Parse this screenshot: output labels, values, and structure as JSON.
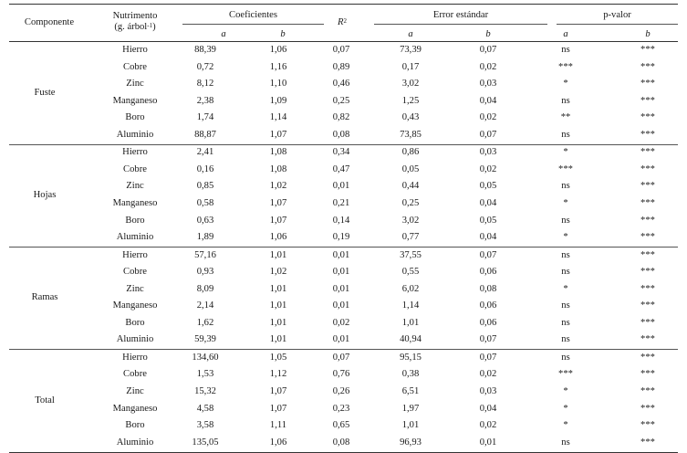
{
  "headers": {
    "componente": "Componente",
    "nutrimento_line1": "Nutrimento",
    "nutrimento_line2": "(g. árbol",
    "nutrimento_sup": "-1",
    "nutrimento_close": ")",
    "coeficientes": "Coeficientes",
    "r2_base": "R",
    "r2_sup": "2",
    "error": "Error estándar",
    "pvalor": "p-valor",
    "sub_a": "a",
    "sub_b": "b"
  },
  "groups": [
    {
      "name": "Fuste",
      "rows": [
        {
          "nutrient": "Hierro",
          "coef_a": "88,39",
          "coef_b": "1,06",
          "r2": "0,07",
          "err_a": "73,39",
          "err_b": "0,07",
          "p_a": "ns",
          "p_b": "***"
        },
        {
          "nutrient": "Cobre",
          "coef_a": "0,72",
          "coef_b": "1,16",
          "r2": "0,89",
          "err_a": "0,17",
          "err_b": "0,02",
          "p_a": "***",
          "p_b": "***"
        },
        {
          "nutrient": "Zinc",
          "coef_a": "8,12",
          "coef_b": "1,10",
          "r2": "0,46",
          "err_a": "3,02",
          "err_b": "0,03",
          "p_a": "*",
          "p_b": "***"
        },
        {
          "nutrient": "Manganeso",
          "coef_a": "2,38",
          "coef_b": "1,09",
          "r2": "0,25",
          "err_a": "1,25",
          "err_b": "0,04",
          "p_a": "ns",
          "p_b": "***"
        },
        {
          "nutrient": "Boro",
          "coef_a": "1,74",
          "coef_b": "1,14",
          "r2": "0,82",
          "err_a": "0,43",
          "err_b": "0,02",
          "p_a": "**",
          "p_b": "***"
        },
        {
          "nutrient": "Aluminio",
          "coef_a": "88,87",
          "coef_b": "1,07",
          "r2": "0,08",
          "err_a": "73,85",
          "err_b": "0,07",
          "p_a": "ns",
          "p_b": "***"
        }
      ]
    },
    {
      "name": "Hojas",
      "rows": [
        {
          "nutrient": "Hierro",
          "coef_a": "2,41",
          "coef_b": "1,08",
          "r2": "0,34",
          "err_a": "0,86",
          "err_b": "0,03",
          "p_a": "*",
          "p_b": "***"
        },
        {
          "nutrient": "Cobre",
          "coef_a": "0,16",
          "coef_b": "1,08",
          "r2": "0,47",
          "err_a": "0,05",
          "err_b": "0,02",
          "p_a": "***",
          "p_b": "***"
        },
        {
          "nutrient": "Zinc",
          "coef_a": "0,85",
          "coef_b": "1,02",
          "r2": "0,01",
          "err_a": "0,44",
          "err_b": "0,05",
          "p_a": "ns",
          "p_b": "***"
        },
        {
          "nutrient": "Manganeso",
          "coef_a": "0,58",
          "coef_b": "1,07",
          "r2": "0,21",
          "err_a": "0,25",
          "err_b": "0,04",
          "p_a": "*",
          "p_b": "***"
        },
        {
          "nutrient": "Boro",
          "coef_a": "0,63",
          "coef_b": "1,07",
          "r2": "0,14",
          "err_a": "3,02",
          "err_b": "0,05",
          "p_a": "ns",
          "p_b": "***"
        },
        {
          "nutrient": "Aluminio",
          "coef_a": "1,89",
          "coef_b": "1,06",
          "r2": "0,19",
          "err_a": "0,77",
          "err_b": "0,04",
          "p_a": "*",
          "p_b": "***"
        }
      ]
    },
    {
      "name": "Ramas",
      "rows": [
        {
          "nutrient": "Hierro",
          "coef_a": "57,16",
          "coef_b": "1,01",
          "r2": "0,01",
          "err_a": "37,55",
          "err_b": "0,07",
          "p_a": "ns",
          "p_b": "***"
        },
        {
          "nutrient": "Cobre",
          "coef_a": "0,93",
          "coef_b": "1,02",
          "r2": "0,01",
          "err_a": "0,55",
          "err_b": "0,06",
          "p_a": "ns",
          "p_b": "***"
        },
        {
          "nutrient": "Zinc",
          "coef_a": "8,09",
          "coef_b": "1,01",
          "r2": "0,01",
          "err_a": "6,02",
          "err_b": "0,08",
          "p_a": "*",
          "p_b": "***"
        },
        {
          "nutrient": "Manganeso",
          "coef_a": "2,14",
          "coef_b": "1,01",
          "r2": "0,01",
          "err_a": "1,14",
          "err_b": "0,06",
          "p_a": "ns",
          "p_b": "***"
        },
        {
          "nutrient": "Boro",
          "coef_a": "1,62",
          "coef_b": "1,01",
          "r2": "0,02",
          "err_a": "1,01",
          "err_b": "0,06",
          "p_a": "ns",
          "p_b": "***"
        },
        {
          "nutrient": "Aluminio",
          "coef_a": "59,39",
          "coef_b": "1,01",
          "r2": "0,01",
          "err_a": "40,94",
          "err_b": "0,07",
          "p_a": "ns",
          "p_b": "***"
        }
      ]
    },
    {
      "name": "Total",
      "rows": [
        {
          "nutrient": "Hierro",
          "coef_a": "134,60",
          "coef_b": "1,05",
          "r2": "0,07",
          "err_a": "95,15",
          "err_b": "0,07",
          "p_a": "ns",
          "p_b": "***"
        },
        {
          "nutrient": "Cobre",
          "coef_a": "1,53",
          "coef_b": "1,12",
          "r2": "0,76",
          "err_a": "0,38",
          "err_b": "0,02",
          "p_a": "***",
          "p_b": "***"
        },
        {
          "nutrient": "Zinc",
          "coef_a": "15,32",
          "coef_b": "1,07",
          "r2": "0,26",
          "err_a": "6,51",
          "err_b": "0,03",
          "p_a": "*",
          "p_b": "***"
        },
        {
          "nutrient": "Manganeso",
          "coef_a": "4,58",
          "coef_b": "1,07",
          "r2": "0,23",
          "err_a": "1,97",
          "err_b": "0,04",
          "p_a": "*",
          "p_b": "***"
        },
        {
          "nutrient": "Boro",
          "coef_a": "3,58",
          "coef_b": "1,11",
          "r2": "0,65",
          "err_a": "1,01",
          "err_b": "0,02",
          "p_a": "*",
          "p_b": "***"
        },
        {
          "nutrient": "Aluminio",
          "coef_a": "135,05",
          "coef_b": "1,06",
          "r2": "0,08",
          "err_a": "96,93",
          "err_b": "0,01",
          "p_a": "ns",
          "p_b": "***"
        }
      ]
    }
  ]
}
